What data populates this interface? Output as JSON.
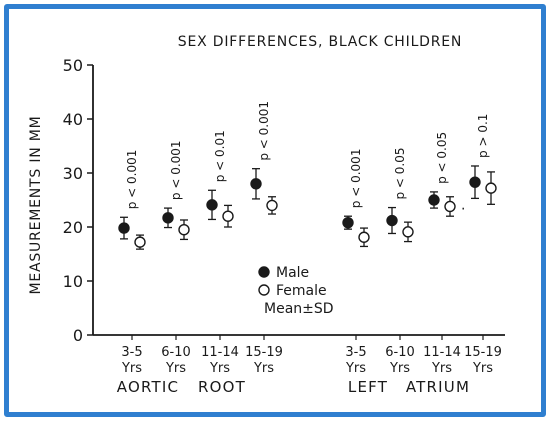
{
  "chart_data": {
    "type": "scatter",
    "title": "SEX DIFFERENCES, BLACK CHILDREN",
    "ylabel": "MEASUREMENTS IN MM",
    "ylim": [
      0,
      50
    ],
    "yticks": [
      0,
      10,
      20,
      30,
      40,
      50
    ],
    "grid": false,
    "categories": [
      {
        "age": "3-5",
        "unit": "Yrs"
      },
      {
        "age": "6-10",
        "unit": "Yrs"
      },
      {
        "age": "11-14",
        "unit": "Yrs"
      },
      {
        "age": "15-19",
        "unit": "Yrs"
      },
      {
        "age": "3-5",
        "unit": "Yrs"
      },
      {
        "age": "6-10",
        "unit": "Yrs"
      },
      {
        "age": "11-14",
        "unit": "Yrs"
      },
      {
        "age": "15-19",
        "unit": "Yrs"
      }
    ],
    "groups": [
      {
        "label_words": [
          "AORTIC",
          "ROOT"
        ],
        "categories": [
          0,
          1,
          2,
          3
        ]
      },
      {
        "label_words": [
          "LEFT",
          "ATRIUM"
        ],
        "categories": [
          4,
          5,
          6,
          7
        ]
      }
    ],
    "p_values": [
      "p < 0.001",
      "p < 0.001",
      "p < 0.01",
      "p < 0.001",
      "p < 0.001",
      "p < 0.05",
      "p < 0.05",
      "p > 0.1"
    ],
    "series": [
      {
        "name": "Male",
        "marker": "filled-circle",
        "mean": [
          19.8,
          21.7,
          24.1,
          28.0,
          20.8,
          21.2,
          25.0,
          28.3
        ],
        "sd": [
          2.0,
          1.8,
          2.7,
          2.8,
          1.2,
          2.4,
          1.5,
          3.0
        ]
      },
      {
        "name": "Female",
        "marker": "open-circle",
        "mean": [
          17.2,
          19.5,
          22.0,
          24.0,
          18.1,
          19.1,
          23.8,
          27.2
        ],
        "sd": [
          1.3,
          1.8,
          2.0,
          1.6,
          1.7,
          1.8,
          1.8,
          3.0
        ]
      }
    ],
    "legend": {
      "placement": "center",
      "items": [
        {
          "marker": "filled-circle",
          "label": "Male"
        },
        {
          "marker": "open-circle",
          "label": "Female"
        }
      ],
      "note": "Mean±SD"
    },
    "annotation": "."
  },
  "colors": {
    "frame": "#2f7fd0",
    "ink": "#1a1a1a"
  }
}
